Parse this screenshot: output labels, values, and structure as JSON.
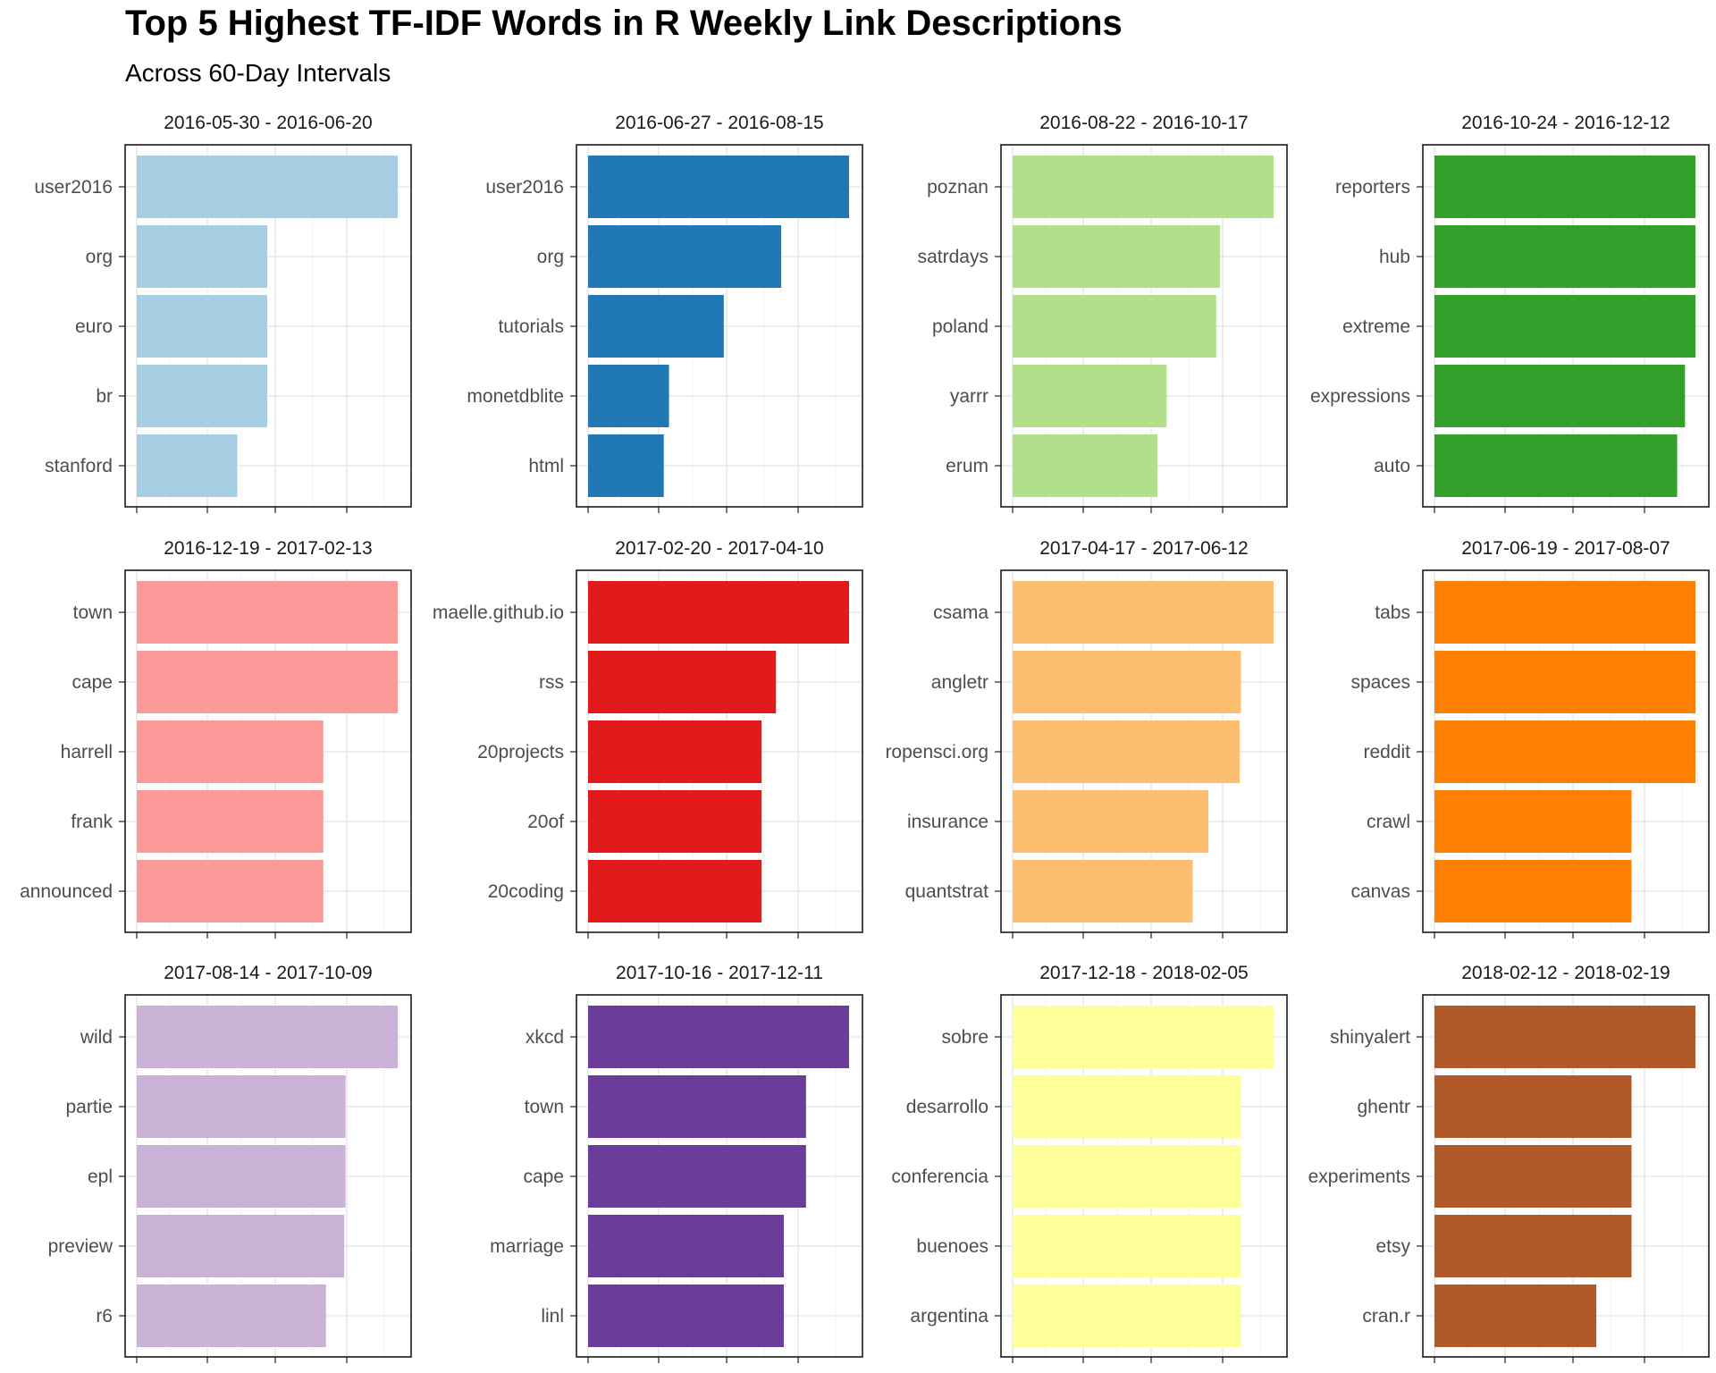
{
  "title": "Top 5 Highest TF-IDF Words in R Weekly Link Descriptions",
  "subtitle": "Across 60-Day Intervals",
  "chart_data": {
    "type": "bar",
    "orientation": "horizontal",
    "title": "Top 5 Highest TF-IDF Words in R Weekly Link Descriptions",
    "subtitle": "Across 60-Day Intervals",
    "xlabel": "",
    "ylabel": "",
    "x_ticks_shown": false,
    "grid": true,
    "legend": "none",
    "layout": "facet grid 3 rows x 4 columns, free scales",
    "panels": [
      {
        "interval": "2016-05-30 - 2016-06-20",
        "color": "#A6CEE3",
        "words": [
          "user2016",
          "org",
          "euro",
          "br",
          "stanford"
        ],
        "values": [
          1.0,
          0.5,
          0.5,
          0.5,
          0.385
        ]
      },
      {
        "interval": "2016-06-27 - 2016-08-15",
        "color": "#1F78B4",
        "words": [
          "user2016",
          "org",
          "tutorials",
          "monetdblite",
          "html"
        ],
        "values": [
          1.0,
          0.74,
          0.52,
          0.31,
          0.29
        ]
      },
      {
        "interval": "2016-08-22 - 2016-10-17",
        "color": "#B2DF8A",
        "words": [
          "poznan",
          "satrdays",
          "poland",
          "yarrr",
          "erum"
        ],
        "values": [
          1.0,
          0.795,
          0.78,
          0.59,
          0.555
        ]
      },
      {
        "interval": "2016-10-24 - 2016-12-12",
        "color": "#33A02C",
        "words": [
          "reporters",
          "hub",
          "extreme",
          "expressions",
          "auto"
        ],
        "values": [
          1.0,
          1.0,
          1.0,
          0.96,
          0.93
        ]
      },
      {
        "interval": "2016-12-19 - 2017-02-13",
        "color": "#FB9A99",
        "words": [
          "town",
          "cape",
          "harrell",
          "frank",
          "announced"
        ],
        "values": [
          1.0,
          1.0,
          0.715,
          0.715,
          0.715
        ]
      },
      {
        "interval": "2017-02-20 - 2017-04-10",
        "color": "#E31A1C",
        "words": [
          "maelle.github.io",
          "rss",
          "20projects",
          "20of",
          "20coding"
        ],
        "values": [
          1.0,
          0.72,
          0.665,
          0.665,
          0.665
        ]
      },
      {
        "interval": "2017-04-17 - 2017-06-12",
        "color": "#FDBF6F",
        "words": [
          "csama",
          "angletr",
          "ropensci.org",
          "insurance",
          "quantstrat"
        ],
        "values": [
          1.0,
          0.875,
          0.87,
          0.75,
          0.69
        ]
      },
      {
        "interval": "2017-06-19 - 2017-08-07",
        "color": "#FF7F00",
        "words": [
          "tabs",
          "spaces",
          "reddit",
          "crawl",
          "canvas"
        ],
        "values": [
          1.0,
          1.0,
          1.0,
          0.755,
          0.755
        ]
      },
      {
        "interval": "2017-08-14 - 2017-10-09",
        "color": "#CAB2D6",
        "words": [
          "wild",
          "partie",
          "epl",
          "preview",
          "r6"
        ],
        "values": [
          1.0,
          0.8,
          0.8,
          0.795,
          0.725
        ]
      },
      {
        "interval": "2017-10-16 - 2017-12-11",
        "color": "#6A3D9A",
        "words": [
          "xkcd",
          "town",
          "cape",
          "marriage",
          "linl"
        ],
        "values": [
          1.0,
          0.835,
          0.835,
          0.75,
          0.75
        ]
      },
      {
        "interval": "2017-12-18 - 2018-02-05",
        "color": "#FFFF99",
        "words": [
          "sobre",
          "desarrollo",
          "conferencia",
          "buenoes",
          "argentina"
        ],
        "values": [
          1.0,
          0.875,
          0.875,
          0.875,
          0.875
        ]
      },
      {
        "interval": "2018-02-12 - 2018-02-19",
        "color": "#B15928",
        "words": [
          "shinyalert",
          "ghentr",
          "experiments",
          "etsy",
          "cran.r"
        ],
        "values": [
          1.0,
          0.755,
          0.755,
          0.755,
          0.62
        ]
      }
    ]
  }
}
